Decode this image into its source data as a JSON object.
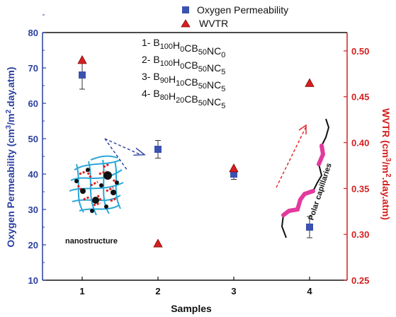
{
  "chart_data": {
    "type": "scatter",
    "xlabel": "Samples",
    "ylabel_left": "Oxygen Permeability (cm3/m2.day.atm)",
    "ylabel_right": "WVTR (cm3/m2.day.atm)",
    "categories": [
      "1",
      "2",
      "3",
      "4"
    ],
    "ylim_left": [
      10,
      80
    ],
    "ylim_right": [
      0.25,
      0.52
    ],
    "yticks_left": [
      "10",
      "20",
      "30",
      "40",
      "50",
      "60",
      "70",
      "80"
    ],
    "yticks_right": [
      "0.25",
      "0.30",
      "0.35",
      "0.40",
      "0.45",
      "0.50"
    ],
    "series": [
      {
        "name": "Oxygen Permeability",
        "axis": "left",
        "marker": "square",
        "color": "#3a52b0",
        "values": [
          68,
          47,
          40,
          25
        ],
        "errors": [
          4,
          2.5,
          1.5,
          3
        ]
      },
      {
        "name": "WVTR",
        "axis": "right",
        "marker": "triangle",
        "color": "#d42020",
        "values": [
          0.49,
          0.29,
          0.372,
          0.465
        ]
      }
    ],
    "sample_list": [
      {
        "num": "1-",
        "parts": [
          [
            "B",
            "100"
          ],
          [
            "H",
            "0"
          ],
          [
            "CB",
            "50"
          ],
          [
            "NC",
            "0"
          ]
        ]
      },
      {
        "num": "2-",
        "parts": [
          [
            "B",
            "100"
          ],
          [
            "H",
            "0"
          ],
          [
            "CB",
            "50"
          ],
          [
            "NC",
            "5"
          ]
        ]
      },
      {
        "num": "3-",
        "parts": [
          [
            "B",
            "90"
          ],
          [
            "H",
            "10"
          ],
          [
            "CB",
            "50"
          ],
          [
            "NC",
            "5"
          ]
        ]
      },
      {
        "num": "4-",
        "parts": [
          [
            "B",
            "80"
          ],
          [
            "H",
            "20"
          ],
          [
            "CB",
            "50"
          ],
          [
            "NC",
            "5"
          ]
        ]
      }
    ],
    "annotations": {
      "nanostructure": "nanostructure",
      "polar_capillaries": "Polar capillaries"
    },
    "grid": false,
    "legend_position": "top-center"
  }
}
